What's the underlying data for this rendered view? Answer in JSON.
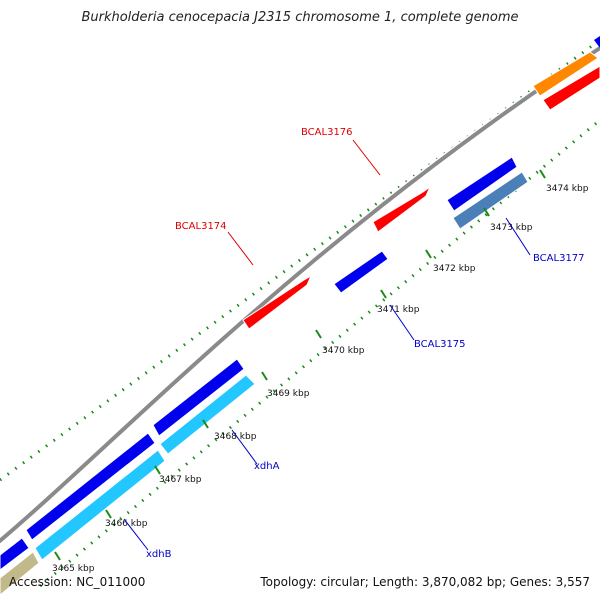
{
  "header": {
    "title": "Burkholderia cenocepacia J2315 chromosome 1, complete genome"
  },
  "footer": {
    "accession": "Accession: NC_011000",
    "summary": "Topology: circular; Length: 3,870,082 bp; Genes: 3,557"
  },
  "colors": {
    "backbone": "#8a8a8a",
    "tick": "#1a8a1a",
    "gene_red": "#ff0000",
    "gene_blue": "#0000ee",
    "gene_cyan": "#22c7ff",
    "gene_steel": "#4a7fb8",
    "gene_orange": "#ff8800",
    "gene_olive": "#c2b98a",
    "label_red": "#dd0000",
    "label_blue": "#0000cc"
  },
  "kbp_labels": [
    "3465 kbp",
    "3466 kbp",
    "3467 kbp",
    "3468 kbp",
    "3469 kbp",
    "3470 kbp",
    "3471 kbp",
    "3472 kbp",
    "3473 kbp",
    "3474 kbp"
  ],
  "gene_labels": [
    {
      "text": "BCAL3176",
      "color": "red"
    },
    {
      "text": "BCAL3174",
      "color": "red"
    },
    {
      "text": "BCAL3177",
      "color": "blue"
    },
    {
      "text": "BCAL3175",
      "color": "blue"
    },
    {
      "text": "xdhA",
      "color": "blue"
    },
    {
      "text": "xdhB",
      "color": "blue"
    }
  ]
}
